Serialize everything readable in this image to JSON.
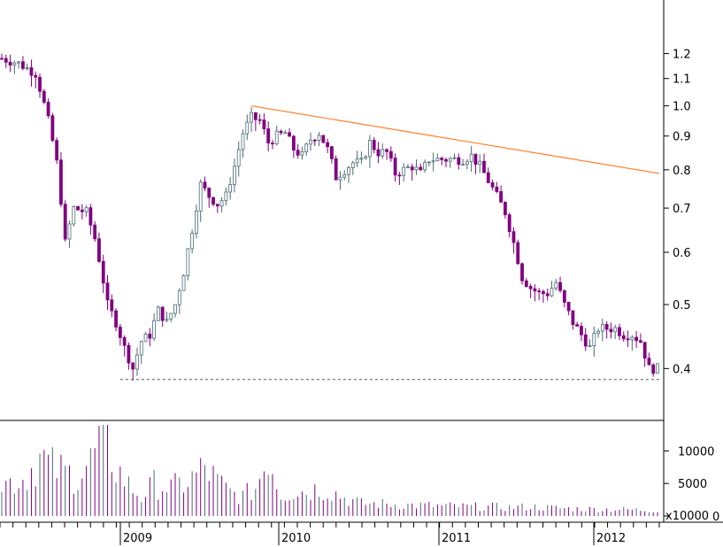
{
  "chart_data": [
    {
      "type": "candlestick",
      "scale": "log",
      "ylim": [
        0.355,
        1.36
      ],
      "y_ticks": [
        "1.2",
        "1.1",
        "1.0",
        "0.9",
        "0.8",
        "0.7",
        "0.6",
        "0.5",
        "0.4"
      ],
      "y_tick_values": [
        1.2,
        1.1,
        1.0,
        0.9,
        0.8,
        0.7,
        0.6,
        0.5,
        0.4
      ],
      "x_labels": [
        "2009",
        "2010",
        "2011",
        "2012"
      ],
      "colors": {
        "up": "#4a6b73",
        "down": "#800080",
        "trendline": "#ff7f27",
        "support": "#555555"
      },
      "close_path": [
        [
          0,
          1.18
        ],
        [
          4,
          1.16
        ],
        [
          8,
          1.12
        ],
        [
          11,
          0.95
        ],
        [
          13,
          0.82
        ],
        [
          15,
          0.62
        ],
        [
          17,
          0.7
        ],
        [
          20,
          0.69
        ],
        [
          22,
          0.63
        ],
        [
          25,
          0.5
        ],
        [
          27,
          0.47
        ],
        [
          29,
          0.43
        ],
        [
          31,
          0.4
        ],
        [
          33,
          0.44
        ],
        [
          35,
          0.45
        ],
        [
          37,
          0.49
        ],
        [
          39,
          0.47
        ],
        [
          41,
          0.5
        ],
        [
          43,
          0.56
        ],
        [
          45,
          0.65
        ],
        [
          47,
          0.76
        ],
        [
          49,
          0.73
        ],
        [
          51,
          0.71
        ],
        [
          53,
          0.73
        ],
        [
          55,
          0.81
        ],
        [
          57,
          0.91
        ],
        [
          59,
          0.96
        ],
        [
          61,
          0.95
        ],
        [
          63,
          0.88
        ],
        [
          65,
          0.9
        ],
        [
          67,
          0.91
        ],
        [
          69,
          0.86
        ],
        [
          71,
          0.84
        ],
        [
          73,
          0.89
        ],
        [
          75,
          0.91
        ],
        [
          77,
          0.86
        ],
        [
          79,
          0.78
        ],
        [
          81,
          0.8
        ],
        [
          83,
          0.82
        ],
        [
          85,
          0.82
        ],
        [
          87,
          0.88
        ],
        [
          89,
          0.85
        ],
        [
          91,
          0.85
        ],
        [
          93,
          0.79
        ],
        [
          95,
          0.8
        ],
        [
          97,
          0.81
        ],
        [
          99,
          0.79
        ],
        [
          101,
          0.83
        ],
        [
          103,
          0.83
        ],
        [
          105,
          0.83
        ],
        [
          107,
          0.83
        ],
        [
          109,
          0.83
        ],
        [
          111,
          0.84
        ],
        [
          113,
          0.81
        ],
        [
          115,
          0.77
        ],
        [
          117,
          0.73
        ],
        [
          119,
          0.69
        ],
        [
          121,
          0.62
        ],
        [
          123,
          0.55
        ],
        [
          125,
          0.53
        ],
        [
          127,
          0.52
        ],
        [
          129,
          0.52
        ],
        [
          131,
          0.54
        ],
        [
          133,
          0.5
        ],
        [
          135,
          0.47
        ],
        [
          137,
          0.45
        ],
        [
          139,
          0.43
        ],
        [
          141,
          0.46
        ],
        [
          143,
          0.46
        ],
        [
          145,
          0.46
        ],
        [
          147,
          0.45
        ],
        [
          149,
          0.45
        ],
        [
          151,
          0.44
        ],
        [
          153,
          0.4
        ],
        [
          155,
          0.4
        ]
      ],
      "trendline": {
        "from": 1.0,
        "to": 0.79
      },
      "support_level": 0.385
    },
    {
      "type": "bar",
      "scale": "linear",
      "unit_label": "x10000",
      "y_ticks": [
        "10000",
        "5000",
        "0"
      ],
      "y_tick_values": [
        10000,
        5000,
        0
      ],
      "ylim": [
        0,
        14000
      ],
      "volume_path": [
        [
          0,
          5200
        ],
        [
          5,
          6000
        ],
        [
          9,
          9500
        ],
        [
          12,
          7800
        ],
        [
          15,
          7000
        ],
        [
          18,
          6500
        ],
        [
          21,
          8800
        ],
        [
          24,
          13000
        ],
        [
          27,
          7800
        ],
        [
          30,
          5000
        ],
        [
          33,
          3000
        ],
        [
          36,
          5200
        ],
        [
          40,
          4500
        ],
        [
          44,
          5500
        ],
        [
          48,
          7800
        ],
        [
          51,
          5500
        ],
        [
          54,
          3800
        ],
        [
          57,
          3200
        ],
        [
          60,
          4500
        ],
        [
          63,
          10000
        ],
        [
          66,
          3500
        ],
        [
          69,
          4000
        ],
        [
          72,
          4000
        ],
        [
          75,
          4500
        ],
        [
          78,
          4000
        ],
        [
          81,
          3000
        ],
        [
          85,
          2000
        ],
        [
          90,
          2000
        ],
        [
          95,
          1800
        ],
        [
          100,
          1700
        ],
        [
          105,
          1600
        ],
        [
          110,
          1500
        ],
        [
          115,
          1500
        ],
        [
          120,
          1400
        ],
        [
          125,
          1500
        ],
        [
          130,
          1300
        ],
        [
          135,
          1200
        ],
        [
          140,
          1100
        ],
        [
          145,
          1100
        ],
        [
          150,
          1000
        ],
        [
          155,
          900
        ]
      ]
    }
  ]
}
